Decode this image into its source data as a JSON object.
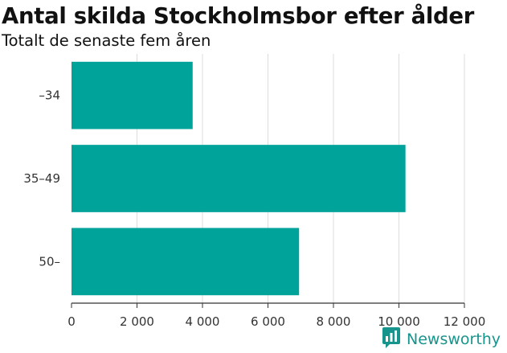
{
  "title": "Antal skilda Stockholmsbor efter ålder",
  "subtitle": "Totalt de senaste fem åren",
  "brand": {
    "name": "Newsworthy",
    "icon": "newsworthy-logo-icon",
    "color": "#17948c"
  },
  "chart_data": {
    "type": "bar",
    "orientation": "horizontal",
    "categories": [
      "–34",
      "35–49",
      "50–"
    ],
    "values": [
      3700,
      10200,
      6950
    ],
    "bar_color": "#00a39a",
    "xlim": [
      0,
      12000
    ],
    "xticks": [
      0,
      2000,
      4000,
      6000,
      8000,
      10000,
      12000
    ],
    "xtick_labels": [
      "0",
      "2 000",
      "4 000",
      "6 000",
      "8 000",
      "10 000",
      "12 000"
    ],
    "grid": "vertical",
    "xlabel": "",
    "ylabel": ""
  }
}
